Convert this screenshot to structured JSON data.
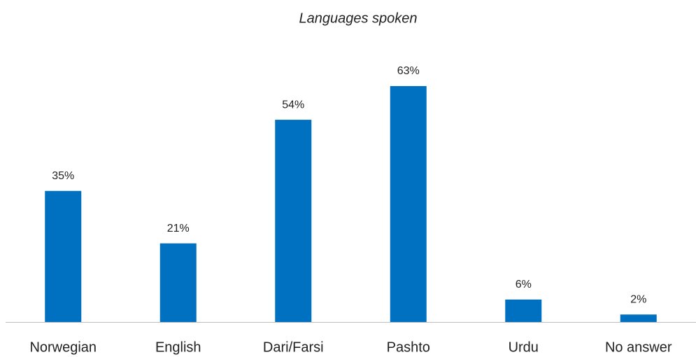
{
  "chart_data": {
    "type": "bar",
    "title": "Languages spoken",
    "categories": [
      "Norwegian",
      "English",
      "Dari/Farsi",
      "Pashto",
      "Urdu",
      "No answer"
    ],
    "values": [
      35,
      21,
      54,
      63,
      6,
      2
    ],
    "value_labels": [
      "35%",
      "21%",
      "54%",
      "63%",
      "6%",
      "2%"
    ],
    "color": "#0070c0"
  }
}
